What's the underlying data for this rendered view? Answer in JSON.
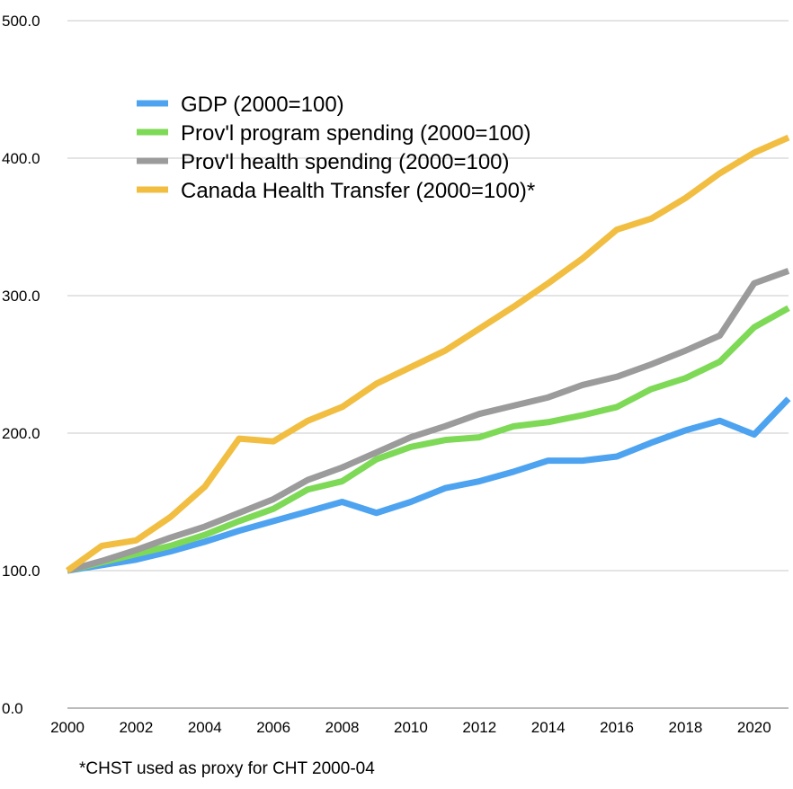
{
  "chart_data": {
    "type": "line",
    "title": "",
    "xlabel": "",
    "ylabel": "",
    "x": [
      2000,
      2001,
      2002,
      2003,
      2004,
      2005,
      2006,
      2007,
      2008,
      2009,
      2010,
      2011,
      2012,
      2013,
      2014,
      2015,
      2016,
      2017,
      2018,
      2019,
      2020,
      2021
    ],
    "xlim": [
      2000,
      2021
    ],
    "ylim": [
      0,
      500
    ],
    "x_ticks": [
      "2000",
      "2002",
      "2004",
      "2006",
      "2008",
      "2010",
      "2012",
      "2014",
      "2016",
      "2018",
      "2020"
    ],
    "y_ticks": [
      "0.0",
      "100.0",
      "200.0",
      "300.0",
      "400.0",
      "500.0"
    ],
    "grid": "horizontal",
    "legend_position": "upper-left",
    "series": [
      {
        "name": "GDP (2000=100)",
        "color": "#4DA3F0",
        "values": [
          100,
          104,
          108,
          114,
          121,
          129,
          136,
          143,
          150,
          142,
          150,
          160,
          165,
          172,
          180,
          180,
          183,
          193,
          202,
          209,
          199,
          225
        ]
      },
      {
        "name": "Prov'l program spending (2000=100)",
        "color": "#7ED957",
        "values": [
          100,
          106,
          112,
          118,
          126,
          136,
          145,
          159,
          165,
          181,
          190,
          195,
          197,
          205,
          208,
          213,
          219,
          232,
          240,
          252,
          277,
          291
        ]
      },
      {
        "name": "Prov'l health spending (2000=100)",
        "color": "#9B9B9B",
        "values": [
          100,
          107,
          115,
          124,
          132,
          142,
          152,
          166,
          175,
          186,
          197,
          205,
          214,
          220,
          226,
          235,
          241,
          250,
          260,
          271,
          309,
          318
        ]
      },
      {
        "name": " Canada Health Transfer (2000=100)*",
        "color": "#F1BE42",
        "values": [
          100,
          118,
          122,
          139,
          161,
          196,
          194,
          209,
          219,
          236,
          248,
          260,
          276,
          292,
          309,
          327,
          348,
          356,
          371,
          389,
          404,
          415
        ]
      }
    ],
    "footnote": "*CHST used as proxy for CHT 2000-04"
  }
}
